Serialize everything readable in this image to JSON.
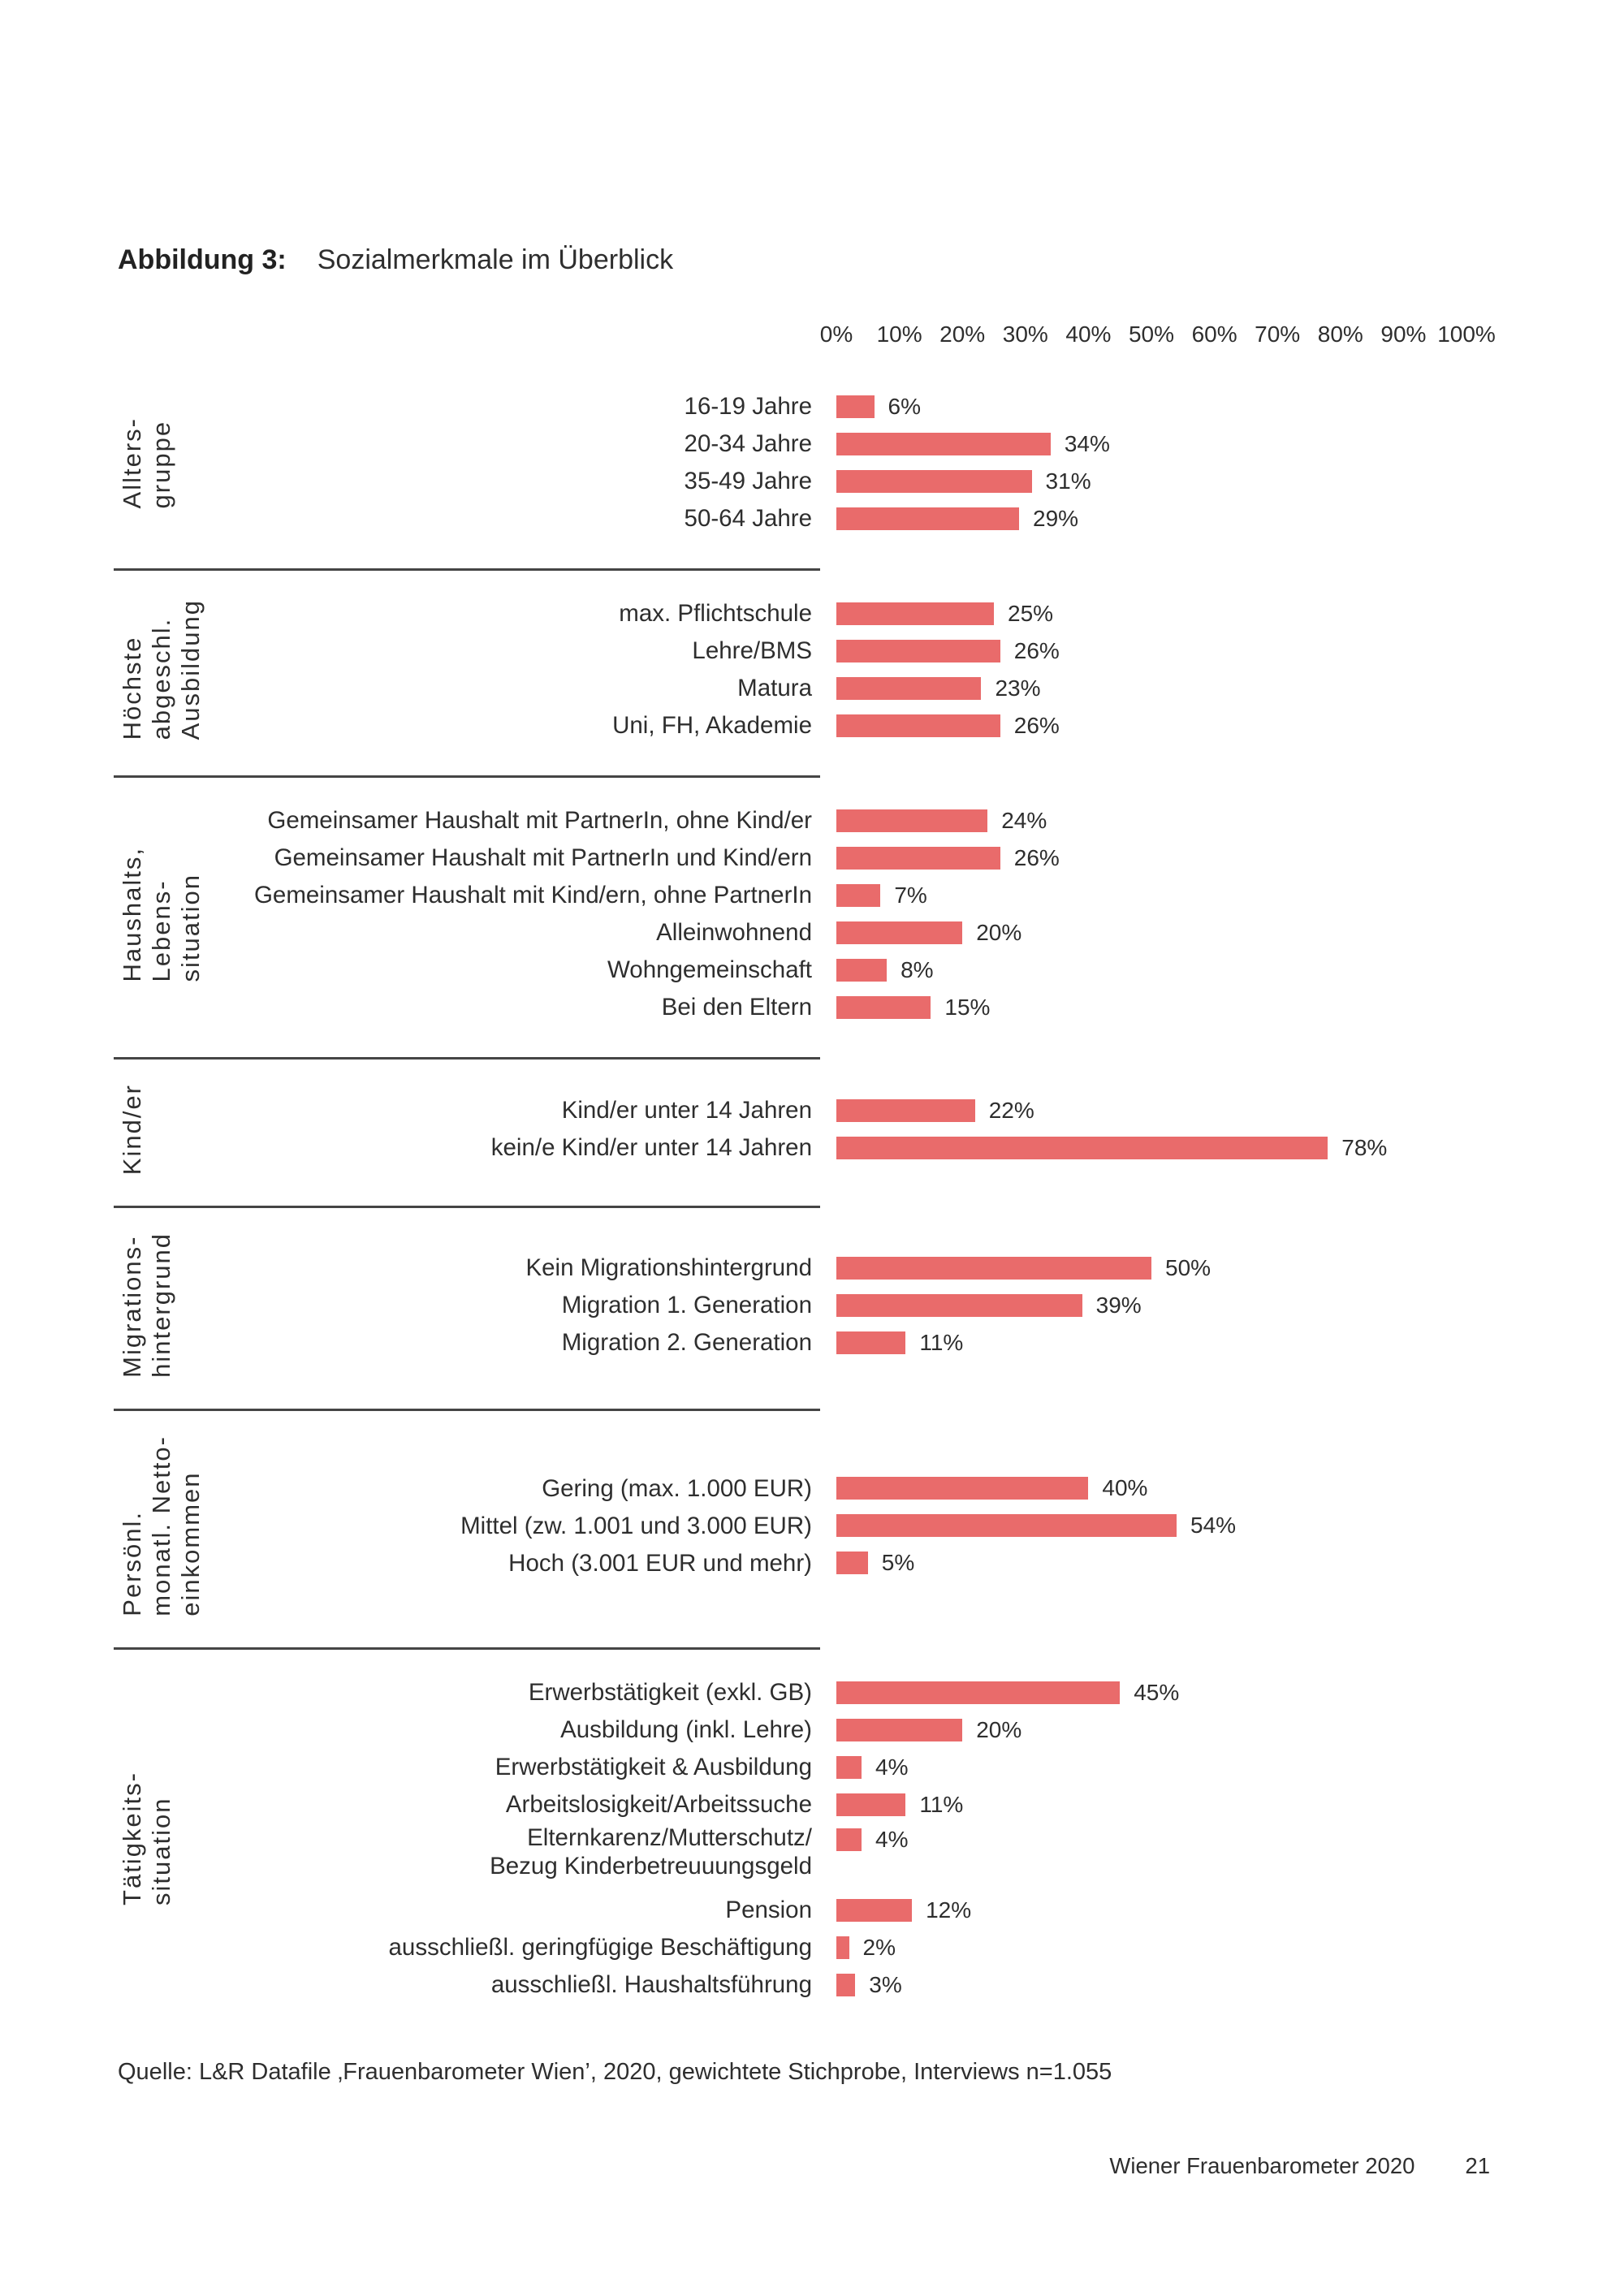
{
  "figure": {
    "label": "Abbildung 3:",
    "title": "Sozialmerkmale im Überblick"
  },
  "chart_data": {
    "type": "bar",
    "orientation": "horizontal",
    "unit": "%",
    "xlim": [
      0,
      100
    ],
    "grid": false,
    "legend": false,
    "bar_color": "#e96b6b",
    "axis_ticks": [
      "0%",
      "10%",
      "20%",
      "30%",
      "40%",
      "50%",
      "60%",
      "70%",
      "80%",
      "90%",
      "100%"
    ],
    "groups": [
      {
        "label": "Allters-\ngruppe",
        "rows": [
          {
            "category": "16-19 Jahre",
            "value": 6,
            "display": "6%"
          },
          {
            "category": "20-34 Jahre",
            "value": 34,
            "display": "34%"
          },
          {
            "category": "35-49 Jahre",
            "value": 31,
            "display": "31%"
          },
          {
            "category": "50-64 Jahre",
            "value": 29,
            "display": "29%"
          }
        ]
      },
      {
        "label": "Höchste\nabgeschl.\nAusbildung",
        "rows": [
          {
            "category": "max. Pflichtschule",
            "value": 25,
            "display": "25%"
          },
          {
            "category": "Lehre/BMS",
            "value": 26,
            "display": "26%"
          },
          {
            "category": "Matura",
            "value": 23,
            "display": "23%"
          },
          {
            "category": "Uni, FH, Akademie",
            "value": 26,
            "display": "26%"
          }
        ]
      },
      {
        "label": "Haushalts,\nLebens-\nsituation",
        "rows": [
          {
            "category": "Gemeinsamer Haushalt mit PartnerIn, ohne Kind/er",
            "value": 24,
            "display": "24%"
          },
          {
            "category": "Gemeinsamer Haushalt mit PartnerIn und Kind/ern",
            "value": 26,
            "display": "26%"
          },
          {
            "category": "Gemeinsamer Haushalt mit Kind/ern, ohne PartnerIn",
            "value": 7,
            "display": "7%"
          },
          {
            "category": "Alleinwohnend",
            "value": 20,
            "display": "20%"
          },
          {
            "category": "Wohngemeinschaft",
            "value": 8,
            "display": "8%"
          },
          {
            "category": "Bei den Eltern",
            "value": 15,
            "display": "15%"
          }
        ]
      },
      {
        "label": "Kind/er",
        "rows": [
          {
            "category": "Kind/er unter 14 Jahren",
            "value": 22,
            "display": "22%"
          },
          {
            "category": "kein/e Kind/er unter 14 Jahren",
            "value": 78,
            "display": "78%"
          }
        ]
      },
      {
        "label": "Migrations-\nhintergrund",
        "rows": [
          {
            "category": "Kein Migrationshintergrund",
            "value": 50,
            "display": "50%"
          },
          {
            "category": "Migration 1. Generation",
            "value": 39,
            "display": "39%"
          },
          {
            "category": "Migration 2. Generation",
            "value": 11,
            "display": "11%"
          }
        ]
      },
      {
        "label": "Persönl.\nmonatl. Netto-\neinkommen",
        "rows": [
          {
            "category": "Gering (max. 1.000 EUR)",
            "value": 40,
            "display": "40%"
          },
          {
            "category": "Mittel (zw. 1.001 und 3.000 EUR)",
            "value": 54,
            "display": "54%"
          },
          {
            "category": "Hoch (3.001 EUR und mehr)",
            "value": 5,
            "display": "5%"
          }
        ]
      },
      {
        "label": "Tätigkeits-\nsituation",
        "rows": [
          {
            "category": "Erwerbstätigkeit (exkl. GB)",
            "value": 45,
            "display": "45%"
          },
          {
            "category": "Ausbildung (inkl. Lehre)",
            "value": 20,
            "display": "20%"
          },
          {
            "category": "Erwerbstätigkeit & Ausbildung",
            "value": 4,
            "display": "4%"
          },
          {
            "category": "Arbeitslosigkeit/Arbeitssuche",
            "value": 11,
            "display": "11%"
          },
          {
            "category": "Elternkarenz/Mutterschutz/\nBezug Kinderbetreuuungsgeld",
            "value": 4,
            "display": "4%",
            "twoLine": true
          },
          {
            "category": "Pension",
            "value": 12,
            "display": "12%"
          },
          {
            "category": "ausschließl. geringfügige Beschäftigung",
            "value": 2,
            "display": "2%"
          },
          {
            "category": "ausschließl. Haushaltsführung",
            "value": 3,
            "display": "3%"
          }
        ]
      }
    ]
  },
  "source": "Quelle: L&R Datafile ‚Frauenbarometer Wien’, 2020, gewichtete Stichprobe, Interviews n=1.055",
  "footer": {
    "text": "Wiener Frauenbarometer 2020",
    "page": "21"
  }
}
